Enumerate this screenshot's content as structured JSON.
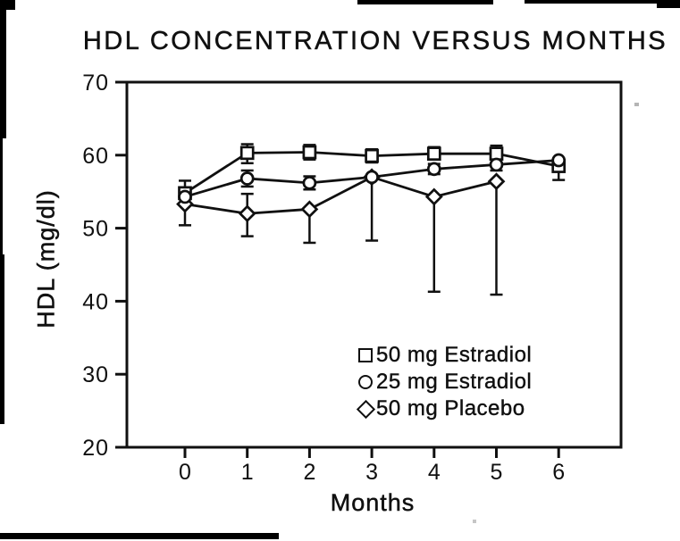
{
  "chart_data": {
    "type": "line",
    "title": "HDL CONCENTRATION VERSUS MONTHS",
    "xlabel": "Months",
    "ylabel": "HDL (mg/dl)",
    "x": [
      0,
      1,
      2,
      3,
      4,
      5,
      6
    ],
    "xticks": [
      0,
      1,
      2,
      3,
      4,
      5,
      6
    ],
    "yticks": [
      70,
      60,
      50,
      40,
      30,
      20
    ],
    "ylim": [
      20,
      70
    ],
    "grid": false,
    "legend_position": "inside lower right",
    "marker_fill": "#ffffff",
    "ink_color": "#101010",
    "series": [
      {
        "name": "50 mg Estradiol",
        "marker": "square",
        "values": [
          54.8,
          60.3,
          60.4,
          59.9,
          60.2,
          60.2,
          58.5
        ],
        "err_minus": [
          0,
          1.4,
          1.0,
          0.9,
          0.8,
          1.4,
          1.9
        ],
        "err_plus": [
          1.7,
          1.2,
          1.0,
          0.9,
          0.9,
          1.1,
          0
        ]
      },
      {
        "name": "25 mg Estradiol",
        "marker": "circle",
        "values": [
          54.3,
          56.8,
          56.2,
          57.0,
          58.1,
          58.7,
          59.3
        ],
        "err_minus": [
          0,
          1.1,
          0.9,
          0,
          0.7,
          0.8,
          0
        ],
        "err_plus": [
          0,
          1.1,
          0.9,
          0,
          0.7,
          0.8,
          0
        ]
      },
      {
        "name": "50 mg Placebo",
        "marker": "diamond",
        "values": [
          53.3,
          52.0,
          52.6,
          57.0,
          54.3,
          56.4,
          null
        ],
        "err_minus": [
          2.9,
          3.1,
          4.6,
          8.7,
          13.0,
          15.5,
          null
        ],
        "err_plus": [
          0,
          2.7,
          0,
          0,
          0,
          0,
          null
        ]
      }
    ]
  }
}
